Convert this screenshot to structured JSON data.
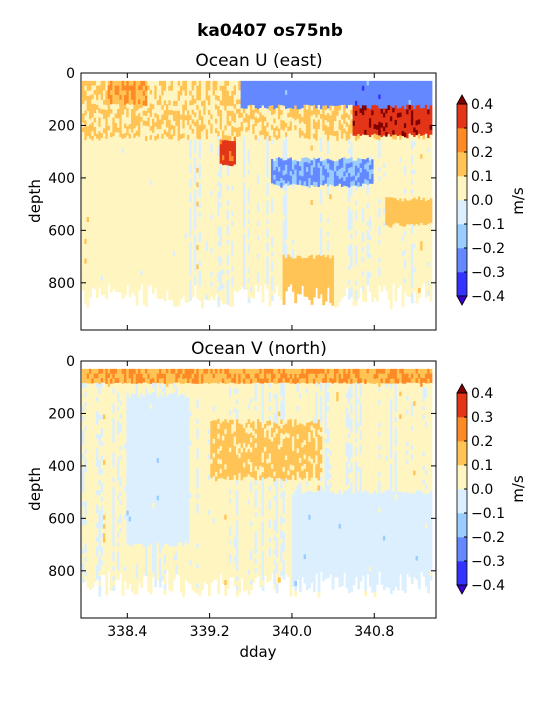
{
  "figure": {
    "title": "ka0407 os75nb"
  },
  "chart_data": [
    {
      "type": "heatmap",
      "title": "Ocean U (east)",
      "xlabel": "",
      "ylabel": "depth",
      "xlim": [
        337.95,
        341.4
      ],
      "ylim": [
        980,
        0
      ],
      "xticks": [
        "338.4",
        "339.2",
        "340.0",
        "340.8"
      ],
      "xtick_values": [
        338.4,
        339.2,
        340.0,
        340.8
      ],
      "yticks": [
        "0",
        "200",
        "400",
        "600",
        "800"
      ],
      "ytick_values": [
        0,
        200,
        400,
        600,
        800
      ],
      "x_tick_labels_visible": false,
      "colorbar": {
        "label": "m/s",
        "ticks": [
          "0.4",
          "0.3",
          "0.2",
          "0.1",
          "0.0",
          "−0.1",
          "−0.2",
          "−0.3",
          "−0.4"
        ],
        "levels": [
          -0.4,
          -0.3,
          -0.2,
          -0.1,
          0.0,
          0.1,
          0.2,
          0.3,
          0.4
        ],
        "extend": "both"
      },
      "features": [
        {
          "x": [
            337.95,
            341.35
          ],
          "depth": [
            30,
            250
          ],
          "value": 0.1
        },
        {
          "x": [
            339.5,
            341.35
          ],
          "depth": [
            30,
            130
          ],
          "value": -0.25
        },
        {
          "x": [
            340.6,
            341.35
          ],
          "depth": [
            130,
            240
          ],
          "value": 0.38
        },
        {
          "x": [
            338.2,
            338.6
          ],
          "depth": [
            30,
            120
          ],
          "value": 0.2
        },
        {
          "x": [
            339.3,
            339.45
          ],
          "depth": [
            250,
            350
          ],
          "value": 0.32
        },
        {
          "x": [
            338.0,
            339.0
          ],
          "depth": [
            250,
            900
          ],
          "value": 0.05
        },
        {
          "x": [
            339.8,
            340.8
          ],
          "depth": [
            330,
            430
          ],
          "value": -0.2
        },
        {
          "x": [
            339.9,
            340.4
          ],
          "depth": [
            700,
            900
          ],
          "value": 0.15
        },
        {
          "x": [
            340.9,
            341.35
          ],
          "depth": [
            480,
            580
          ],
          "value": 0.15
        }
      ]
    },
    {
      "type": "heatmap",
      "title": "Ocean V (north)",
      "xlabel": "dday",
      "ylabel": "depth",
      "xlim": [
        337.95,
        341.4
      ],
      "ylim": [
        980,
        0
      ],
      "xticks": [
        "338.4",
        "339.2",
        "340.0",
        "340.8"
      ],
      "xtick_values": [
        338.4,
        339.2,
        340.0,
        340.8
      ],
      "yticks": [
        "0",
        "200",
        "400",
        "600",
        "800"
      ],
      "ytick_values": [
        0,
        200,
        400,
        600,
        800
      ],
      "x_tick_labels_visible": true,
      "colorbar": {
        "label": "m/s",
        "ticks": [
          "0.4",
          "0.3",
          "0.2",
          "0.1",
          "0.0",
          "−0.1",
          "−0.2",
          "−0.3",
          "−0.4"
        ],
        "levels": [
          -0.4,
          -0.3,
          -0.2,
          -0.1,
          0.0,
          0.1,
          0.2,
          0.3,
          0.4
        ],
        "extend": "both"
      },
      "features": [
        {
          "x": [
            337.95,
            341.35
          ],
          "depth": [
            30,
            90
          ],
          "value": 0.2
        },
        {
          "x": [
            339.4,
            339.55
          ],
          "depth": [
            230,
            380
          ],
          "value": 0.3
        },
        {
          "x": [
            339.2,
            340.3
          ],
          "depth": [
            230,
            450
          ],
          "value": 0.12
        },
        {
          "x": [
            338.4,
            339.0
          ],
          "depth": [
            130,
            700
          ],
          "value": -0.05
        },
        {
          "x": [
            340.0,
            341.35
          ],
          "depth": [
            500,
            880
          ],
          "value": -0.05
        }
      ]
    }
  ]
}
